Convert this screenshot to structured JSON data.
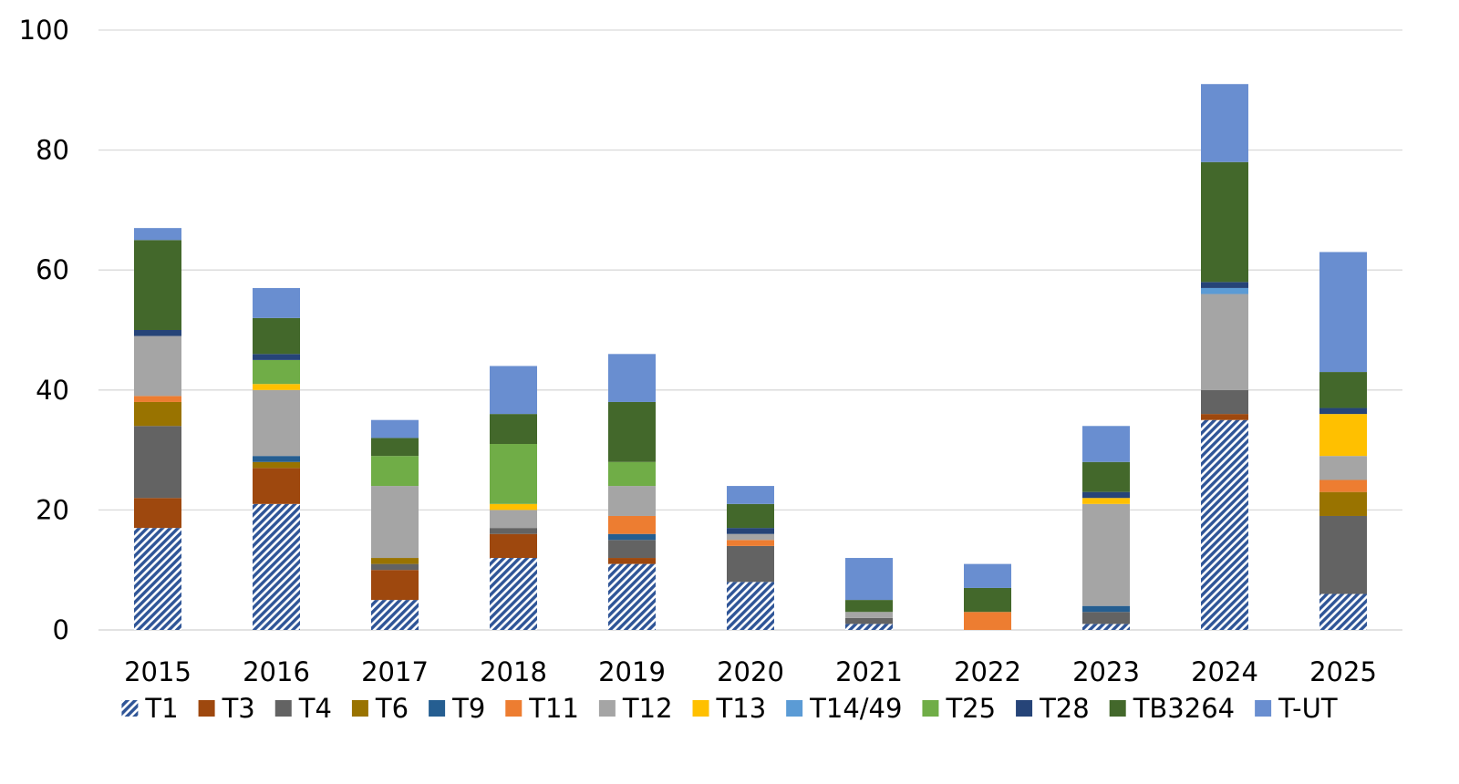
{
  "chart_data": {
    "type": "bar",
    "stacked": true,
    "title": "",
    "xlabel": "",
    "ylabel": "",
    "ylim": [
      0,
      100
    ],
    "yticks": [
      0,
      20,
      40,
      60,
      80,
      100
    ],
    "grid": true,
    "legend_position": "bottom",
    "categories": [
      "2015",
      "2016",
      "2017",
      "2018",
      "2019",
      "2020",
      "2021",
      "2022",
      "2023",
      "2024",
      "2025"
    ],
    "series": [
      {
        "name": "T1",
        "color": "#2f5597",
        "pattern": "hatch",
        "values": [
          17,
          21,
          5,
          12,
          11,
          8,
          1,
          0,
          1,
          35,
          6
        ]
      },
      {
        "name": "T3",
        "color": "#9e480e",
        "values": [
          5,
          6,
          5,
          4,
          1,
          0,
          0,
          0,
          0,
          1,
          0
        ]
      },
      {
        "name": "T4",
        "color": "#636363",
        "values": [
          12,
          0,
          1,
          1,
          3,
          6,
          1,
          0,
          2,
          4,
          13
        ]
      },
      {
        "name": "T6",
        "color": "#997300",
        "values": [
          4,
          1,
          1,
          0,
          0,
          0,
          0,
          0,
          0,
          0,
          4
        ]
      },
      {
        "name": "T9",
        "color": "#255e91",
        "values": [
          0,
          1,
          0,
          0,
          1,
          0,
          0,
          0,
          1,
          0,
          0
        ]
      },
      {
        "name": "T11",
        "color": "#ed7d31",
        "values": [
          1,
          0,
          0,
          0,
          3,
          1,
          0,
          3,
          0,
          0,
          2
        ]
      },
      {
        "name": "T12",
        "color": "#a5a5a5",
        "values": [
          10,
          11,
          12,
          3,
          5,
          1,
          1,
          0,
          17,
          16,
          4
        ]
      },
      {
        "name": "T13",
        "color": "#ffc000",
        "values": [
          0,
          1,
          0,
          1,
          0,
          0,
          0,
          0,
          1,
          0,
          7
        ]
      },
      {
        "name": "T14/49",
        "color": "#5b9bd5",
        "values": [
          0,
          0,
          0,
          0,
          0,
          0,
          0,
          0,
          0,
          1,
          0
        ]
      },
      {
        "name": "T25",
        "color": "#70ad47",
        "values": [
          0,
          4,
          5,
          10,
          4,
          0,
          0,
          0,
          0,
          0,
          0
        ]
      },
      {
        "name": "T28",
        "color": "#264478",
        "values": [
          1,
          1,
          0,
          0,
          0,
          1,
          0,
          0,
          1,
          1,
          1
        ]
      },
      {
        "name": "TB3264",
        "color": "#43682b",
        "values": [
          15,
          6,
          3,
          5,
          10,
          4,
          2,
          4,
          5,
          20,
          6
        ]
      },
      {
        "name": "T-UT",
        "color": "#698ed0",
        "values": [
          2,
          5,
          3,
          8,
          8,
          3,
          7,
          4,
          6,
          13,
          20
        ]
      }
    ]
  }
}
